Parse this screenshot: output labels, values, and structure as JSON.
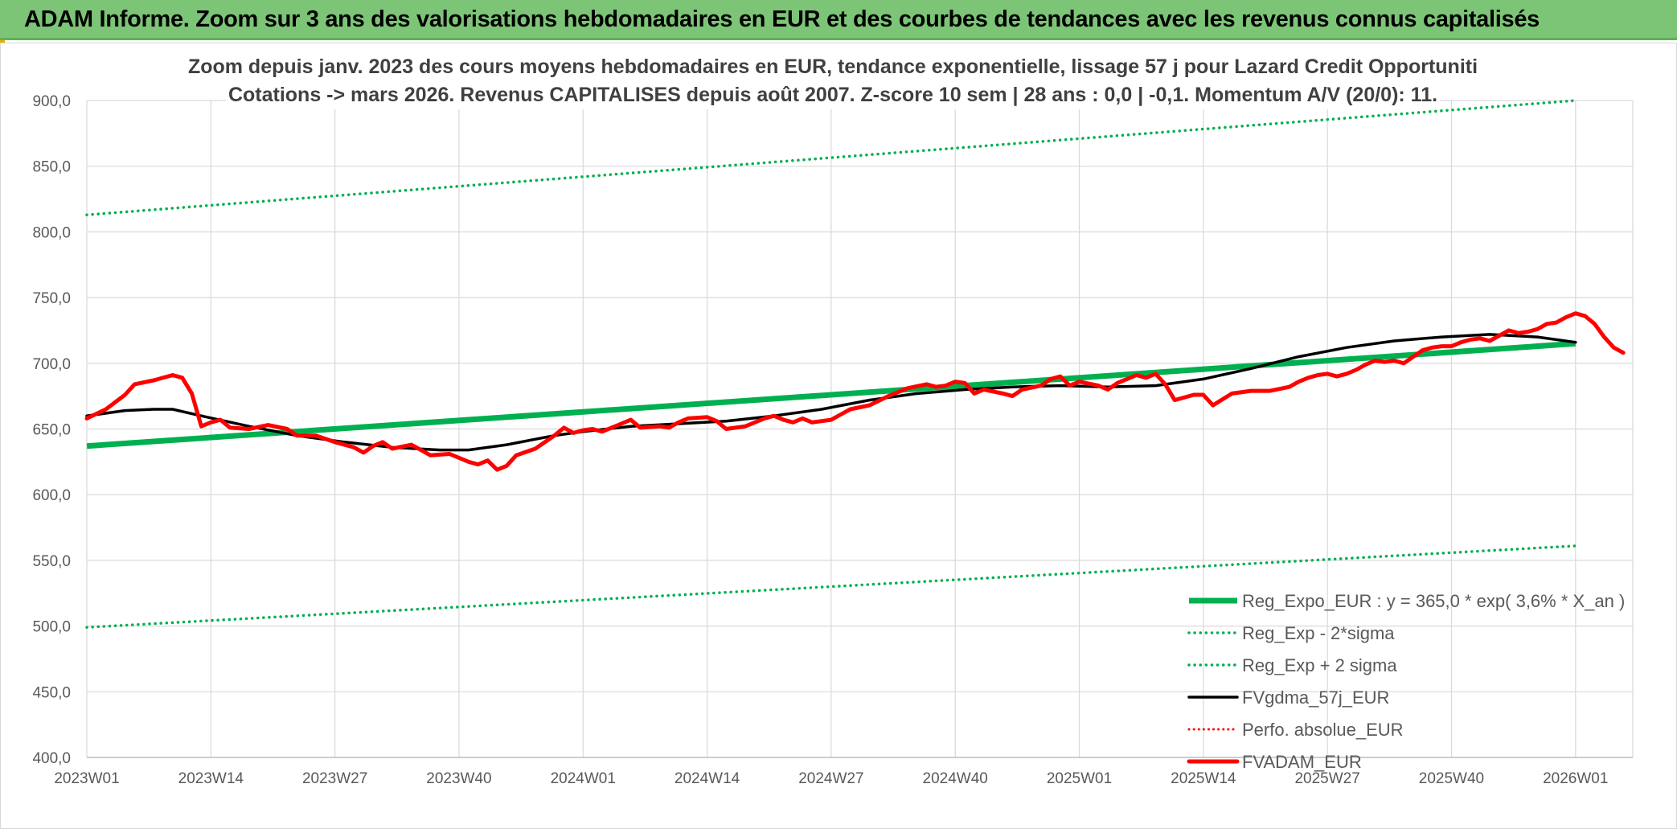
{
  "header": {
    "title": "ADAM Informe. Zoom sur 3 ans des valorisations hebdomadaires en EUR et des courbes de tendances avec les revenus connus capitalisés"
  },
  "chart_data": {
    "type": "line",
    "title_line1": "Zoom depuis janv. 2023 des cours moyens hebdomadaires en EUR, tendance exponentielle, lissage 57 j pour Lazard Credit Opportuniti",
    "title_line2": "Cotations -> mars 2026. Revenus CAPITALISES depuis août 2007. Z-score 10 sem | 28 ans : 0,0 | -0,1. Momentum A/V (20/0): 11.",
    "ylim": [
      400,
      900
    ],
    "yticks": [
      "400,0",
      "450,0",
      "500,0",
      "550,0",
      "600,0",
      "650,0",
      "700,0",
      "750,0",
      "800,0",
      "850,0",
      "900,0"
    ],
    "xticks": [
      "2023W01",
      "2023W14",
      "2023W27",
      "2023W40",
      "2024W01",
      "2024W14",
      "2024W27",
      "2024W40",
      "2025W01",
      "2025W14",
      "2025W27",
      "2025W40",
      "2026W01"
    ],
    "grid": true,
    "legend_position": "bottom-right",
    "colors": {
      "reg": "#00b050",
      "plus": "#00b050",
      "minus": "#00b050",
      "fv57": "#000000",
      "perf": "#ff0000",
      "fvadam": "#ff0000"
    },
    "series": [
      {
        "name": "Reg_Expo_EUR : y = 365,0 * exp( 3,6% * X_an )",
        "key": "reg",
        "style": "thick",
        "points": [
          [
            1,
            637
          ],
          [
            157,
            715
          ]
        ]
      },
      {
        "name": "Reg_Exp - 2*sigma",
        "key": "minus",
        "style": "dotted",
        "points": [
          [
            1,
            499
          ],
          [
            157,
            561
          ]
        ]
      },
      {
        "name": "Reg_Exp + 2 sigma",
        "key": "plus",
        "style": "dotted",
        "points": [
          [
            1,
            813
          ],
          [
            157,
            900
          ]
        ]
      },
      {
        "name": "FVgdma_57j_EUR",
        "key": "fv57",
        "style": "solid",
        "points": [
          [
            1,
            660
          ],
          [
            5,
            664
          ],
          [
            8,
            665
          ],
          [
            10,
            665
          ],
          [
            13,
            660
          ],
          [
            18,
            652
          ],
          [
            23,
            645
          ],
          [
            28,
            640
          ],
          [
            33,
            636
          ],
          [
            38,
            634
          ],
          [
            41,
            634
          ],
          [
            45,
            638
          ],
          [
            50,
            645
          ],
          [
            53,
            648
          ],
          [
            58,
            652
          ],
          [
            63,
            654
          ],
          [
            68,
            656
          ],
          [
            73,
            660
          ],
          [
            78,
            665
          ],
          [
            83,
            672
          ],
          [
            88,
            677
          ],
          [
            93,
            680
          ],
          [
            98,
            682
          ],
          [
            103,
            683
          ],
          [
            108,
            682
          ],
          [
            113,
            683
          ],
          [
            118,
            688
          ],
          [
            123,
            696
          ],
          [
            128,
            705
          ],
          [
            133,
            712
          ],
          [
            138,
            717
          ],
          [
            143,
            720
          ],
          [
            148,
            722
          ],
          [
            153,
            720
          ],
          [
            157,
            716
          ]
        ]
      },
      {
        "name": "Perfo. absolue_EUR",
        "key": "perf",
        "style": "reddotted",
        "points": []
      },
      {
        "name": "FVADAM_EUR",
        "key": "fvadam",
        "style": "thickred",
        "points": [
          [
            1,
            658
          ],
          [
            3,
            665
          ],
          [
            5,
            676
          ],
          [
            6,
            684
          ],
          [
            8,
            687
          ],
          [
            10,
            691
          ],
          [
            11,
            689
          ],
          [
            12,
            677
          ],
          [
            13,
            652
          ],
          [
            14,
            655
          ],
          [
            15,
            657
          ],
          [
            16,
            651
          ],
          [
            18,
            650
          ],
          [
            20,
            653
          ],
          [
            22,
            650
          ],
          [
            23,
            645
          ],
          [
            25,
            645
          ],
          [
            27,
            640
          ],
          [
            29,
            636
          ],
          [
            30,
            632
          ],
          [
            31,
            637
          ],
          [
            32,
            640
          ],
          [
            33,
            635
          ],
          [
            35,
            638
          ],
          [
            36,
            634
          ],
          [
            37,
            630
          ],
          [
            39,
            631
          ],
          [
            41,
            625
          ],
          [
            42,
            623
          ],
          [
            43,
            626
          ],
          [
            44,
            619
          ],
          [
            45,
            622
          ],
          [
            46,
            630
          ],
          [
            48,
            635
          ],
          [
            49,
            640
          ],
          [
            50,
            645
          ],
          [
            51,
            651
          ],
          [
            52,
            647
          ],
          [
            53,
            649
          ],
          [
            54,
            650
          ],
          [
            55,
            648
          ],
          [
            57,
            654
          ],
          [
            58,
            657
          ],
          [
            59,
            651
          ],
          [
            61,
            652
          ],
          [
            62,
            651
          ],
          [
            63,
            655
          ],
          [
            64,
            658
          ],
          [
            66,
            659
          ],
          [
            67,
            656
          ],
          [
            68,
            650
          ],
          [
            70,
            652
          ],
          [
            72,
            658
          ],
          [
            73,
            660
          ],
          [
            74,
            657
          ],
          [
            75,
            655
          ],
          [
            76,
            658
          ],
          [
            77,
            655
          ],
          [
            79,
            657
          ],
          [
            80,
            661
          ],
          [
            81,
            665
          ],
          [
            83,
            668
          ],
          [
            85,
            675
          ],
          [
            87,
            681
          ],
          [
            89,
            684
          ],
          [
            90,
            682
          ],
          [
            91,
            683
          ],
          [
            92,
            686
          ],
          [
            93,
            685
          ],
          [
            94,
            677
          ],
          [
            95,
            680
          ],
          [
            97,
            677
          ],
          [
            98,
            675
          ],
          [
            99,
            680
          ],
          [
            101,
            683
          ],
          [
            102,
            688
          ],
          [
            103,
            690
          ],
          [
            104,
            683
          ],
          [
            105,
            686
          ],
          [
            107,
            683
          ],
          [
            108,
            680
          ],
          [
            109,
            685
          ],
          [
            110,
            688
          ],
          [
            111,
            691
          ],
          [
            112,
            689
          ],
          [
            113,
            692
          ],
          [
            114,
            684
          ],
          [
            115,
            672
          ],
          [
            117,
            676
          ],
          [
            118,
            676
          ],
          [
            119,
            668
          ],
          [
            121,
            677
          ],
          [
            123,
            679
          ],
          [
            125,
            679
          ],
          [
            127,
            682
          ],
          [
            128,
            686
          ],
          [
            129,
            689
          ],
          [
            130,
            691
          ],
          [
            131,
            692
          ],
          [
            132,
            690
          ],
          [
            133,
            692
          ],
          [
            134,
            695
          ],
          [
            135,
            699
          ],
          [
            136,
            702
          ],
          [
            137,
            701
          ],
          [
            138,
            702
          ],
          [
            139,
            700
          ],
          [
            140,
            705
          ],
          [
            141,
            710
          ],
          [
            142,
            712
          ],
          [
            143,
            713
          ],
          [
            144,
            713
          ],
          [
            145,
            716
          ],
          [
            146,
            718
          ],
          [
            147,
            719
          ],
          [
            148,
            717
          ],
          [
            149,
            721
          ],
          [
            150,
            725
          ],
          [
            151,
            723
          ],
          [
            152,
            724
          ],
          [
            153,
            726
          ],
          [
            154,
            730
          ],
          [
            155,
            731
          ],
          [
            156,
            735
          ],
          [
            157,
            738
          ],
          [
            158,
            736
          ],
          [
            159,
            730
          ],
          [
            160,
            720
          ],
          [
            161,
            712
          ],
          [
            162,
            708
          ]
        ]
      }
    ]
  }
}
